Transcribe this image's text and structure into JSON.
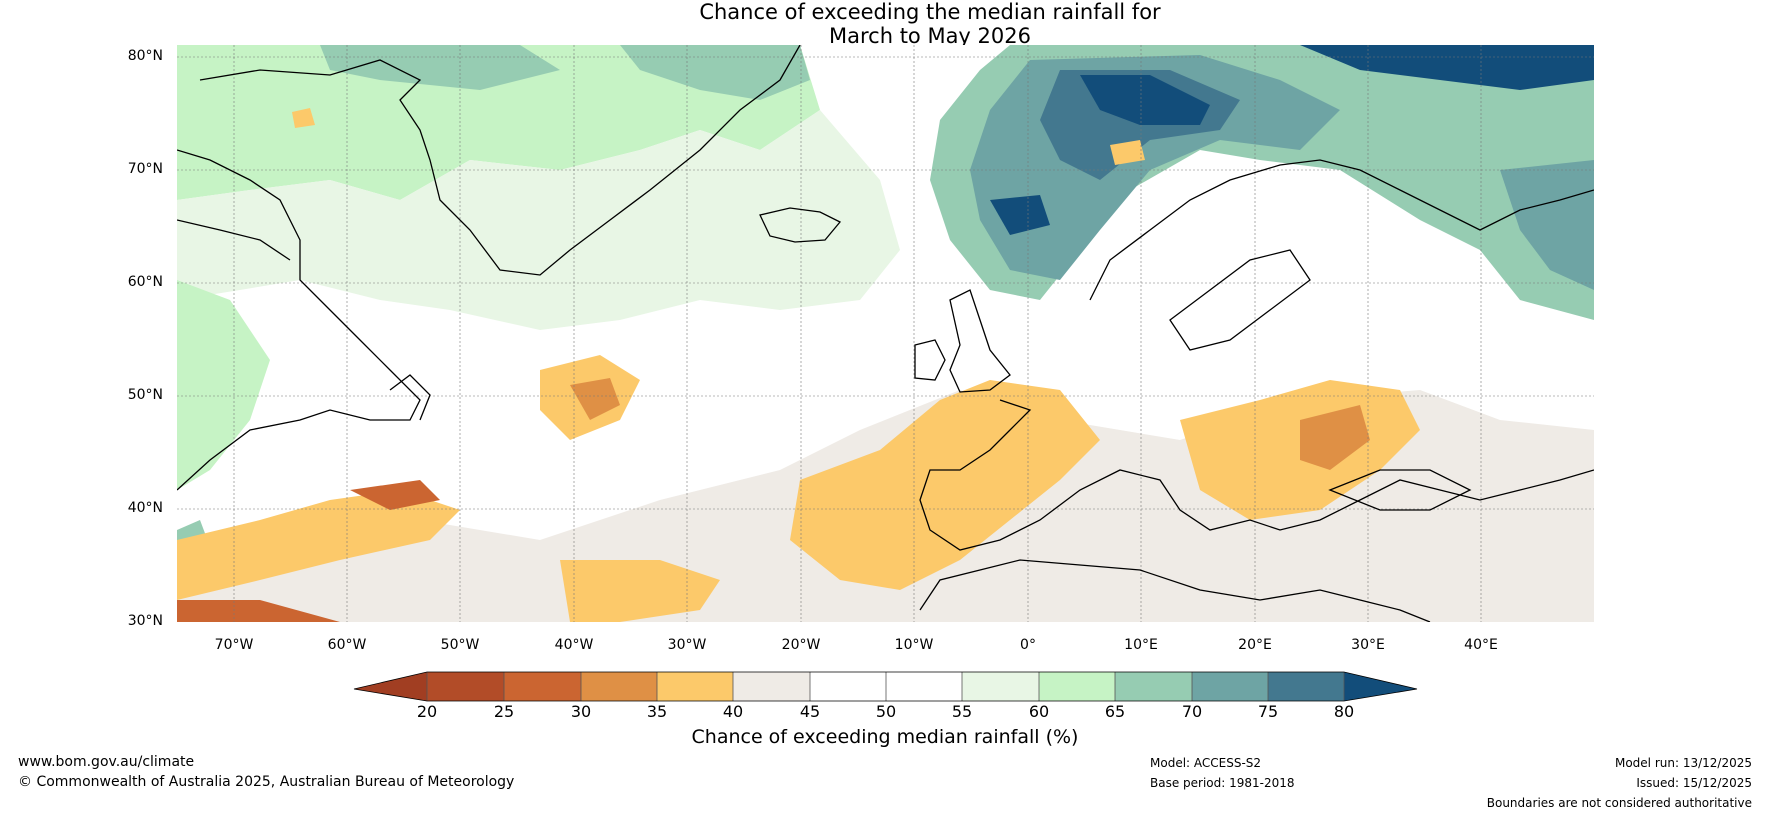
{
  "title": {
    "line1": "Chance of exceeding the median rainfall for",
    "line2": "March to May 2026"
  },
  "axes": {
    "lat_labels": [
      "80°N",
      "70°N",
      "60°N",
      "50°N",
      "40°N",
      "30°N"
    ],
    "lon_labels": [
      "70°W",
      "60°W",
      "50°W",
      "40°W",
      "30°W",
      "20°W",
      "10°W",
      "0°",
      "10°E",
      "20°E",
      "30°E",
      "40°E"
    ]
  },
  "colorbar": {
    "ticks": [
      "20",
      "25",
      "30",
      "35",
      "40",
      "45",
      "50",
      "55",
      "60",
      "65",
      "70",
      "75",
      "80"
    ],
    "title": "Chance of exceeding median rainfall (%)",
    "colors": [
      "#a13e22",
      "#b24c28",
      "#cb6531",
      "#df9045",
      "#fcc96a",
      "#efebe6",
      "#ffffff",
      "#ffffff",
      "#e8f6e5",
      "#c6f3c5",
      "#96ccb2",
      "#6ea4a4",
      "#43788f",
      "#124d7a"
    ]
  },
  "footer": {
    "website": "www.bom.gov.au/climate",
    "copyright": "© Commonwealth of Australia 2025, Australian Bureau of Meteorology",
    "model": "Model: ACCESS-S2",
    "base_period": "Base period: 1981-2018",
    "model_run": "Model run: 13/12/2025",
    "issued": "Issued: 15/12/2025",
    "disclaimer": "Boundaries are not considered authoritative"
  }
}
